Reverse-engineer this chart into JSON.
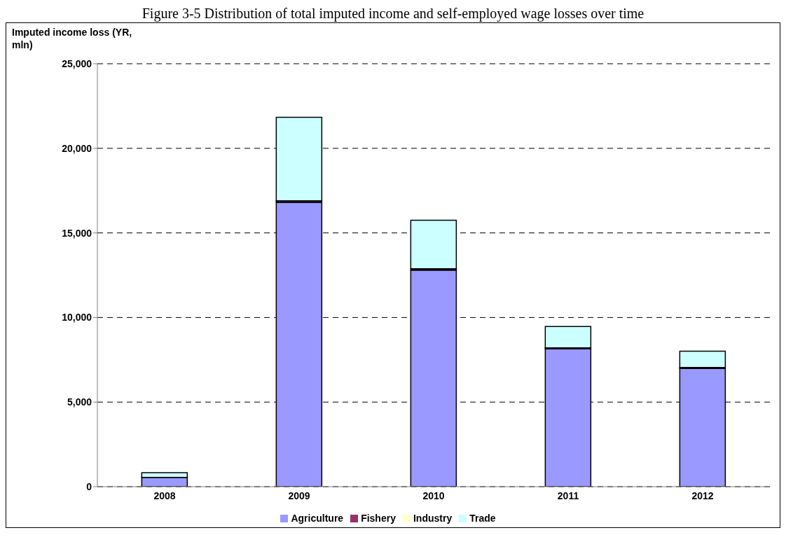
{
  "chart_data": {
    "type": "bar",
    "title": "Figure 3-5 Distribution of total imputed income and self-employed wage losses over time",
    "ylabel": "Imputed income loss (YR, mln)",
    "categories": [
      "2008",
      "2009",
      "2010",
      "2011",
      "2012"
    ],
    "series": [
      {
        "name": "Agriculture",
        "color": "#9999ff",
        "values": [
          550,
          16800,
          12800,
          8150,
          6980
        ]
      },
      {
        "name": "Fishery",
        "color": "#993366",
        "values": [
          null,
          100,
          80,
          60,
          70
        ]
      },
      {
        "name": "Industry",
        "color": "#ffffcc",
        "values": [
          null,
          null,
          null,
          null,
          null
        ]
      },
      {
        "name": "Trade",
        "color": "#ccffff",
        "values": [
          280,
          4930,
          2870,
          1260,
          960
        ]
      }
    ],
    "stacked": true,
    "ylim": [
      0,
      25000
    ],
    "yticks": [
      {
        "value": 0,
        "label": "0"
      },
      {
        "value": 5000,
        "label": "5,000"
      },
      {
        "value": 10000,
        "label": "10,000"
      },
      {
        "value": 15000,
        "label": "15,000"
      },
      {
        "value": 20000,
        "label": "20,000"
      },
      {
        "value": 25000,
        "label": "25,000"
      }
    ],
    "grid": "y",
    "legend": "bottom"
  }
}
